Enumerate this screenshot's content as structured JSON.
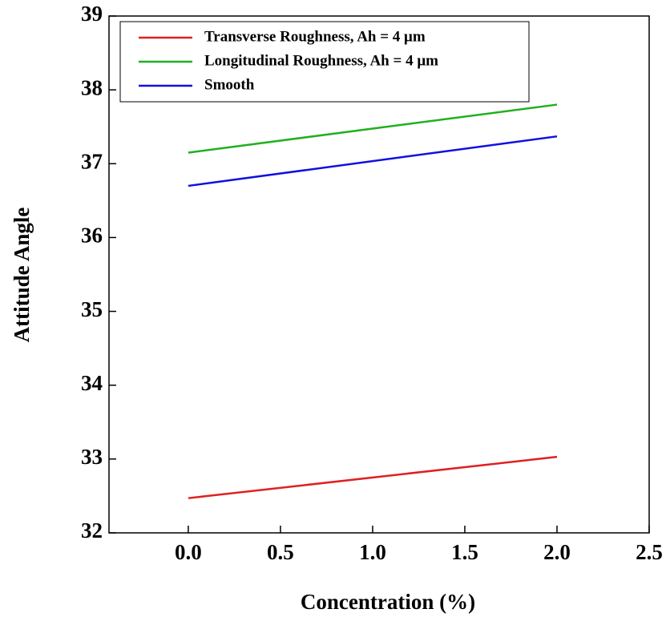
{
  "chart_data": {
    "type": "line",
    "x_label": "Concentration (%)",
    "y_label": "Attitude Angle",
    "x": [
      0.0,
      2.0
    ],
    "series": [
      {
        "name": "Transverse Roughness, Ah = 4 μm",
        "color": "#e02020",
        "values": [
          32.47,
          33.03
        ]
      },
      {
        "name": "Longitudinal Roughness, Ah = 4 μm",
        "color": "#20b020",
        "values": [
          37.15,
          37.8
        ]
      },
      {
        "name": "Smooth",
        "color": "#1010e0",
        "values": [
          36.7,
          37.37
        ]
      }
    ],
    "xlim": [
      -0.43,
      2.5
    ],
    "xticks": [
      {
        "value": 0,
        "label": "0.0"
      },
      0.5,
      {
        "value": 1,
        "label": "1.0"
      },
      1.5,
      {
        "value": 2,
        "label": "2.0"
      },
      2.5
    ],
    "ylim": [
      32,
      39
    ],
    "yticks": [
      32,
      33,
      34,
      35,
      36,
      37,
      38,
      39
    ],
    "legend": "upper-left"
  }
}
